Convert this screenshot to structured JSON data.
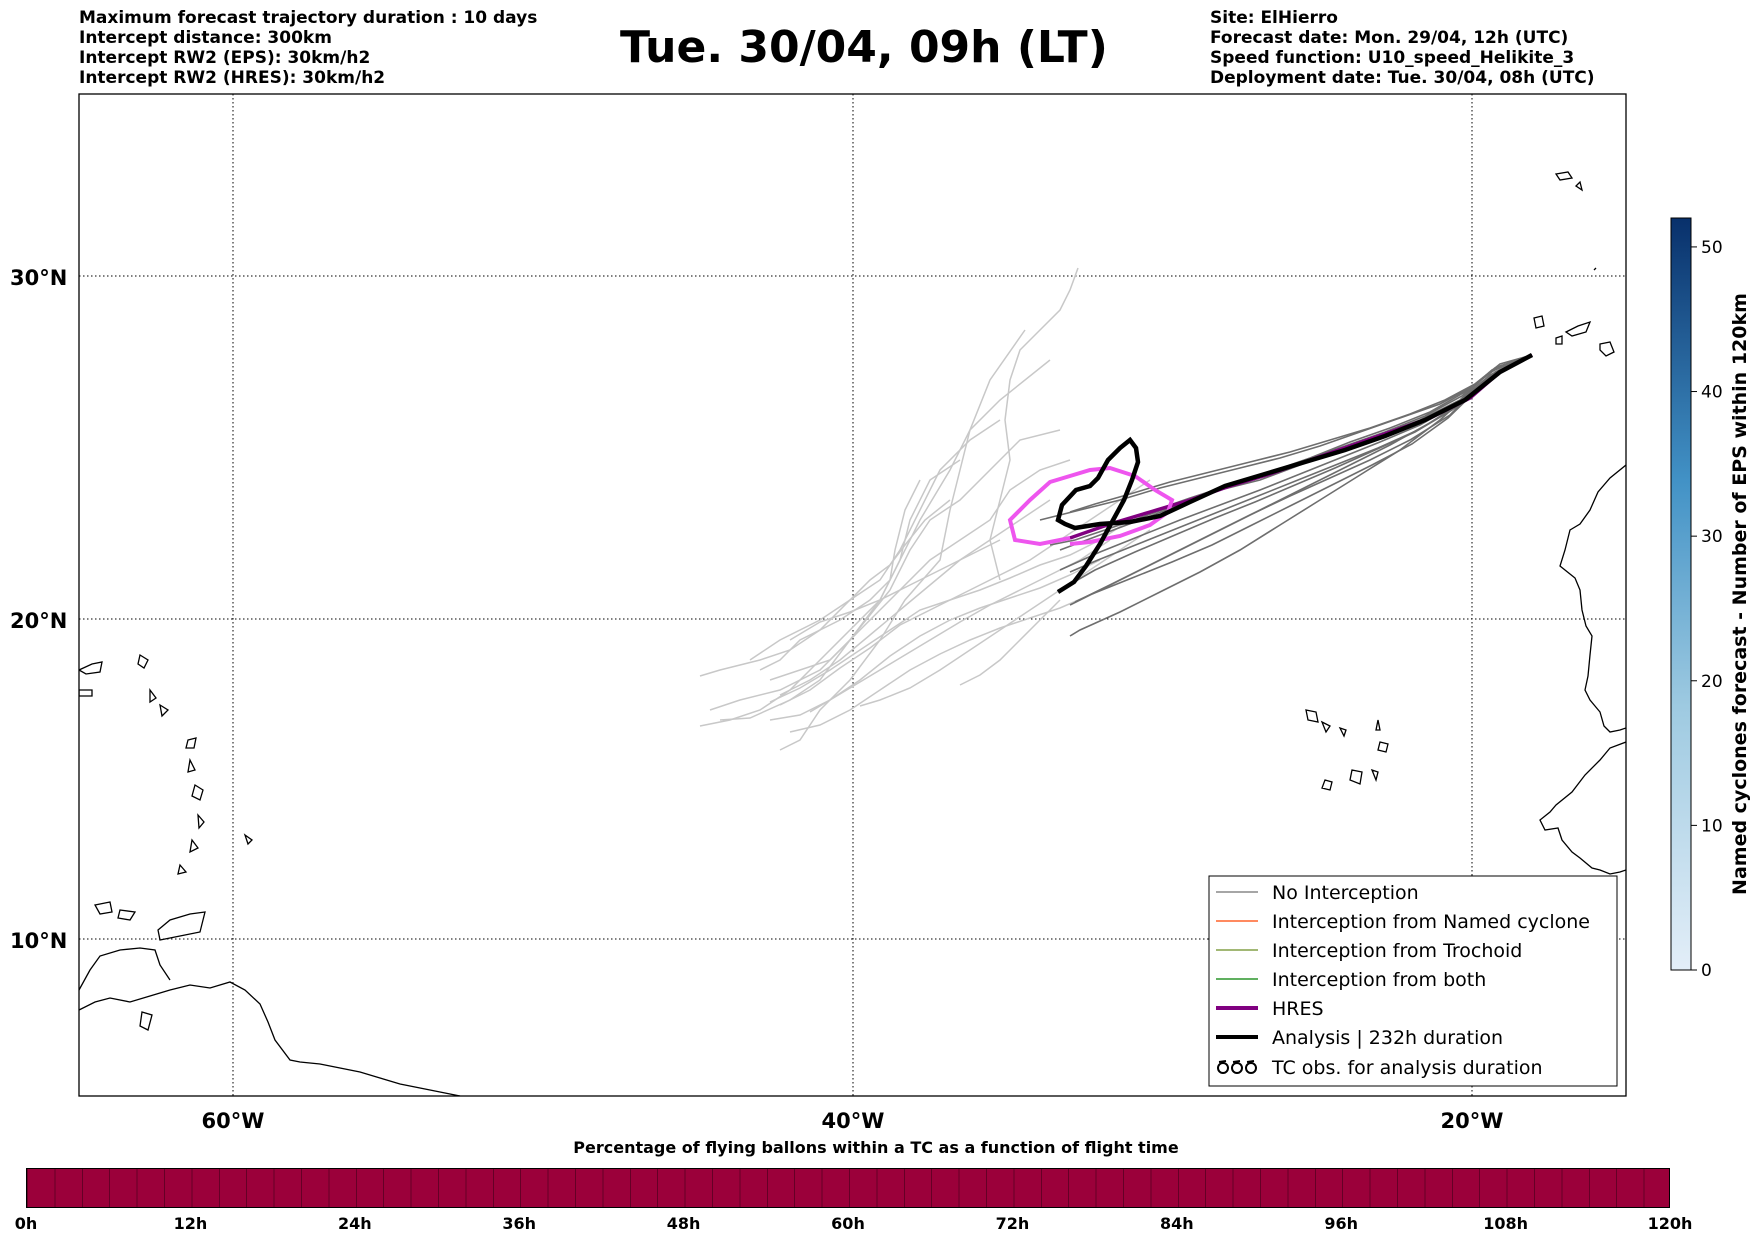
{
  "header_left": [
    "Maximum forecast trajectory duration : 10 days",
    "Intercept distance: 300km",
    "Intercept RW2 (EPS):  30km/h2",
    "Intercept RW2 (HRES): 30km/h2"
  ],
  "title": "Tue. 30/04, 09h (LT)",
  "header_right": [
    "Site: ElHierro",
    "Forecast date: Mon. 29/04, 12h (UTC)",
    "Speed function: U10_speed_Helikite_3",
    "Deployment date: Tue. 30/04, 08h (UTC)"
  ],
  "map": {
    "lat_labels": [
      "30°N",
      "20°N",
      "10°N"
    ],
    "lon_labels": [
      "60°W",
      "40°W",
      "20°W"
    ],
    "extent": {
      "lon_min": -65,
      "lon_max": -15,
      "lat_min": 5.3,
      "lat_max": 34.6
    }
  },
  "legend": [
    {
      "label": "No Interception",
      "color": "#707070",
      "kind": "line"
    },
    {
      "label": "Interception from Named cyclone",
      "color": "#ff4500",
      "kind": "line"
    },
    {
      "label": "Interception from Trochoid",
      "color": "#6b8e23",
      "kind": "line"
    },
    {
      "label": "Interception from both",
      "color": "#008000",
      "kind": "line"
    },
    {
      "label": "HRES",
      "color": "#800080",
      "kind": "thick"
    },
    {
      "label": "Analysis | 232h duration",
      "color": "#000000",
      "kind": "thick"
    },
    {
      "label": "TC obs. for analysis duration",
      "color": "#000000",
      "kind": "symbol"
    }
  ],
  "colorbar": {
    "label": "Named cyclones forecast - Number of EPS within 120km",
    "ticks": [
      "0",
      "10",
      "20",
      "30",
      "40",
      "50"
    ],
    "min": 0,
    "max": 52,
    "color_low": "#e3eef8",
    "color_high": "#08306b"
  },
  "pct_bar": {
    "title": "Percentage of flying ballons within a TC as a function of flight time",
    "ticks": [
      "0h",
      "12h",
      "24h",
      "36h",
      "48h",
      "60h",
      "72h",
      "84h",
      "96h",
      "108h",
      "120h"
    ],
    "color": "#9b003a"
  }
}
